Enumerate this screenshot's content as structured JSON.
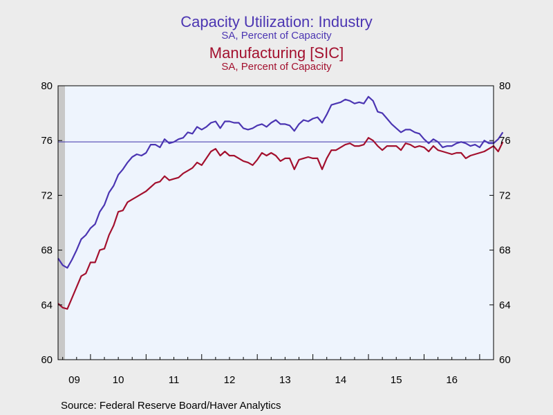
{
  "titles": {
    "series1_title": "Capacity Utilization: Industry",
    "series1_subtitle": "SA, Percent of Capacity",
    "series2_title": "Manufacturing [SIC]",
    "series2_subtitle": "SA, Percent of Capacity"
  },
  "source": "Source:  Federal Reserve Board/Haver Analytics",
  "colors": {
    "industry": "#4b35b2",
    "manufacturing": "#a3102e",
    "plot_bg": "#eef4fd",
    "recession": "#c8c8c8",
    "reference_line": "#3b2fa8"
  },
  "chart_data": {
    "type": "line",
    "x_start": "2009-06",
    "frequency": "monthly",
    "ylim": [
      60,
      80
    ],
    "y_ticks": [
      60,
      64,
      68,
      72,
      76,
      80
    ],
    "x_tick_labels": [
      "09",
      "10",
      "11",
      "12",
      "13",
      "14",
      "15",
      "16"
    ],
    "dual_axis": true,
    "grid": false,
    "recession_shading": {
      "start": "2009-06",
      "end": "2009-06"
    },
    "reference_line": 75.9,
    "series": [
      {
        "name": "Capacity Utilization: Industry",
        "values": [
          67.4,
          66.9,
          66.7,
          67.3,
          68.0,
          68.8,
          69.1,
          69.6,
          69.9,
          70.8,
          71.3,
          72.2,
          72.7,
          73.5,
          73.9,
          74.4,
          74.8,
          75.0,
          74.9,
          75.1,
          75.7,
          75.7,
          75.5,
          76.1,
          75.8,
          75.9,
          76.1,
          76.2,
          76.6,
          76.5,
          77.0,
          76.8,
          77.0,
          77.3,
          77.4,
          76.9,
          77.4,
          77.4,
          77.3,
          77.3,
          76.9,
          76.8,
          76.9,
          77.1,
          77.2,
          77.0,
          77.3,
          77.5,
          77.2,
          77.2,
          77.1,
          76.7,
          77.2,
          77.5,
          77.4,
          77.6,
          77.7,
          77.3,
          77.9,
          78.6,
          78.7,
          78.8,
          79.0,
          78.9,
          78.7,
          78.8,
          78.7,
          79.2,
          78.9,
          78.1,
          78.0,
          77.6,
          77.2,
          76.9,
          76.6,
          76.8,
          76.8,
          76.6,
          76.5,
          76.1,
          75.8,
          76.1,
          75.9,
          75.5,
          75.6,
          75.6,
          75.8,
          75.9,
          75.8,
          75.6,
          75.7,
          75.5,
          76.0,
          75.8,
          75.8,
          76.1,
          76.6
        ]
      },
      {
        "name": "Manufacturing [SIC]",
        "values": [
          64.1,
          63.8,
          63.7,
          64.5,
          65.3,
          66.1,
          66.3,
          67.1,
          67.1,
          68.0,
          68.1,
          69.1,
          69.8,
          70.8,
          70.9,
          71.5,
          71.7,
          71.9,
          72.1,
          72.3,
          72.6,
          72.9,
          73.0,
          73.4,
          73.1,
          73.2,
          73.3,
          73.6,
          73.8,
          74.0,
          74.4,
          74.2,
          74.7,
          75.2,
          75.4,
          74.9,
          75.2,
          74.9,
          74.9,
          74.7,
          74.5,
          74.4,
          74.2,
          74.6,
          75.1,
          74.9,
          75.1,
          74.9,
          74.5,
          74.7,
          74.7,
          73.9,
          74.6,
          74.7,
          74.8,
          74.7,
          74.7,
          73.9,
          74.7,
          75.3,
          75.3,
          75.5,
          75.7,
          75.8,
          75.6,
          75.6,
          75.7,
          76.2,
          76.0,
          75.6,
          75.3,
          75.6,
          75.6,
          75.6,
          75.3,
          75.8,
          75.7,
          75.5,
          75.6,
          75.5,
          75.2,
          75.6,
          75.3,
          75.2,
          75.1,
          75.0,
          75.1,
          75.1,
          74.7,
          74.9,
          75.0,
          75.1,
          75.2,
          75.4,
          75.6,
          75.2,
          75.9
        ]
      }
    ]
  }
}
